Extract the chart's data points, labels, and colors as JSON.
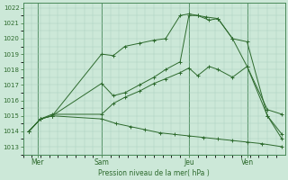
{
  "xlabel": "Pression niveau de la mer( hPa )",
  "background_color": "#cce8d8",
  "grid_color": "#a8ccbc",
  "line_color": "#2d6a2d",
  "spine_color": "#4a8a5a",
  "ylim": [
    1012.5,
    1022.3
  ],
  "xlim": [
    -0.2,
    8.8
  ],
  "yticks": [
    1013,
    1014,
    1015,
    1016,
    1017,
    1018,
    1019,
    1020,
    1021,
    1022
  ],
  "x_labels": [
    "Mer",
    "Sam",
    "Jeu",
    "Ven"
  ],
  "x_positions": [
    0.3,
    2.5,
    5.5,
    7.5
  ],
  "vlines": [
    0.3,
    2.5,
    5.5,
    7.5
  ],
  "line1_x": [
    0.0,
    0.4,
    0.8,
    2.5,
    2.9,
    3.3,
    3.8,
    4.3,
    4.7,
    5.2,
    5.5,
    5.8,
    6.1,
    6.5,
    7.0,
    7.5,
    8.2,
    8.7
  ],
  "line1_y": [
    1014.0,
    1014.8,
    1015.0,
    1019.0,
    1018.9,
    1019.5,
    1019.7,
    1019.9,
    1020.0,
    1021.5,
    1021.6,
    1021.5,
    1021.4,
    1021.3,
    1020.0,
    1018.2,
    1015.0,
    1013.8
  ],
  "line2_x": [
    0.0,
    0.4,
    0.8,
    2.5,
    2.9,
    3.3,
    3.8,
    4.3,
    4.7,
    5.2,
    5.5,
    5.8,
    6.2,
    6.5,
    7.0,
    7.5,
    8.2,
    8.7
  ],
  "line2_y": [
    1014.0,
    1014.8,
    1015.0,
    1017.1,
    1016.3,
    1016.5,
    1017.0,
    1017.5,
    1018.0,
    1018.5,
    1021.5,
    1021.5,
    1021.2,
    1021.3,
    1020.0,
    1019.8,
    1015.0,
    1013.5
  ],
  "line3_x": [
    0.0,
    0.4,
    0.8,
    2.5,
    2.9,
    3.3,
    3.8,
    4.3,
    4.7,
    5.2,
    5.5,
    5.8,
    6.2,
    6.5,
    7.0,
    7.5,
    8.2,
    8.7
  ],
  "line3_y": [
    1014.0,
    1014.8,
    1015.1,
    1015.1,
    1015.8,
    1016.2,
    1016.6,
    1017.1,
    1017.4,
    1017.8,
    1018.1,
    1017.6,
    1018.2,
    1018.0,
    1017.5,
    1018.2,
    1015.4,
    1015.1
  ],
  "line4_x": [
    0.0,
    0.4,
    0.8,
    2.5,
    3.0,
    3.5,
    4.0,
    4.5,
    5.0,
    5.5,
    6.0,
    6.5,
    7.0,
    7.5,
    8.0,
    8.7
  ],
  "line4_y": [
    1014.0,
    1014.8,
    1015.0,
    1014.8,
    1014.5,
    1014.3,
    1014.1,
    1013.9,
    1013.8,
    1013.7,
    1013.6,
    1013.5,
    1013.4,
    1013.3,
    1013.2,
    1013.0
  ]
}
